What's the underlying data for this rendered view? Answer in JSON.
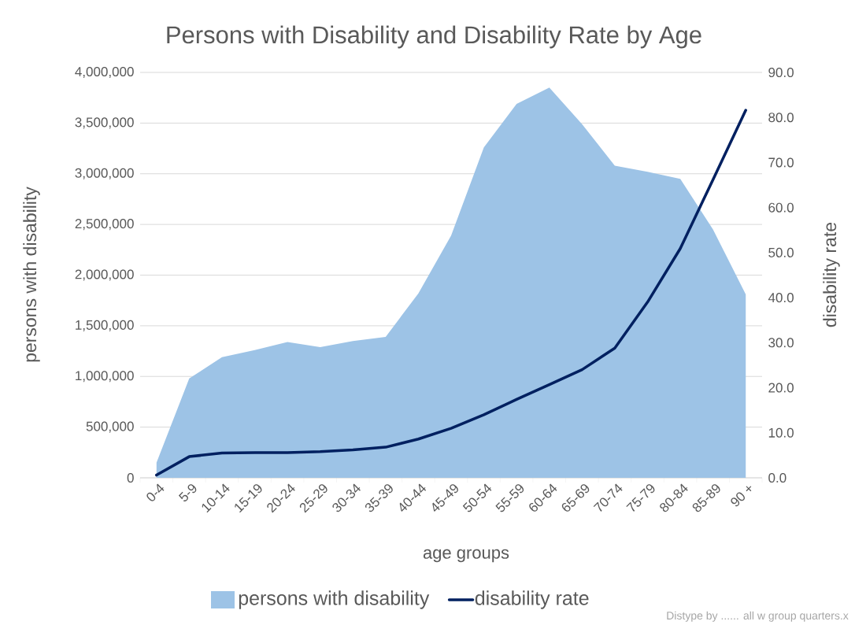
{
  "chart_data": {
    "type": "area",
    "title": "Persons with Disability and Disability Rate by Age",
    "xlabel": "age groups",
    "ylabel": "persons with disability",
    "y2label": "disability rate",
    "categories": [
      "0-4",
      "5-9",
      "10-14",
      "15-19",
      "20-24",
      "25-29",
      "30-34",
      "35-39",
      "40-44",
      "45-49",
      "50-54",
      "55-59",
      "60-64",
      "65-69",
      "70-74",
      "75-79",
      "80-84",
      "85-89",
      "90 +"
    ],
    "series": [
      {
        "name": "persons with disability",
        "color": "#9dc3e6",
        "values": [
          150000,
          980000,
          1190000,
          1260000,
          1340000,
          1290000,
          1350000,
          1390000,
          1820000,
          2390000,
          3260000,
          3690000,
          3850000,
          3490000,
          3080000,
          3020000,
          2950000,
          2450000,
          1810000
        ]
      },
      {
        "name": "disability rate",
        "type": "line",
        "axis": "y2",
        "color": "#002060",
        "values": [
          0.6,
          4.7,
          5.5,
          5.6,
          5.6,
          5.8,
          6.2,
          6.8,
          8.6,
          11.0,
          14.0,
          17.4,
          20.7,
          24.0,
          28.8,
          39.0,
          50.9,
          66.2,
          81.6
        ]
      }
    ],
    "ylim": [
      0,
      4000000
    ],
    "yticks": [
      {
        "value": 0,
        "label": "0"
      },
      {
        "value": 500000,
        "label": "500,000"
      },
      {
        "value": 1000000,
        "label": "1,000,000"
      },
      {
        "value": 1500000,
        "label": "1,500,000"
      },
      {
        "value": 2000000,
        "label": "2,000,000"
      },
      {
        "value": 2500000,
        "label": "2,500,000"
      },
      {
        "value": 3000000,
        "label": "3,000,000"
      },
      {
        "value": 3500000,
        "label": "3,500,000"
      },
      {
        "value": 4000000,
        "label": "4,000,000"
      }
    ],
    "y2lim": [
      0,
      90
    ],
    "y2ticks": [
      {
        "value": 0,
        "label": "0.0"
      },
      {
        "value": 10,
        "label": "10.0"
      },
      {
        "value": 20,
        "label": "20.0"
      },
      {
        "value": 30,
        "label": "30.0"
      },
      {
        "value": 40,
        "label": "40.0"
      },
      {
        "value": 50,
        "label": "50.0"
      },
      {
        "value": 60,
        "label": "60.0"
      },
      {
        "value": 70,
        "label": "70.0"
      },
      {
        "value": 80,
        "label": "80.0"
      },
      {
        "value": 90,
        "label": "90.0"
      }
    ],
    "grid": "y",
    "legend": "bottom",
    "annotations": [
      "Distype by ...... all w group quarters.x"
    ]
  }
}
